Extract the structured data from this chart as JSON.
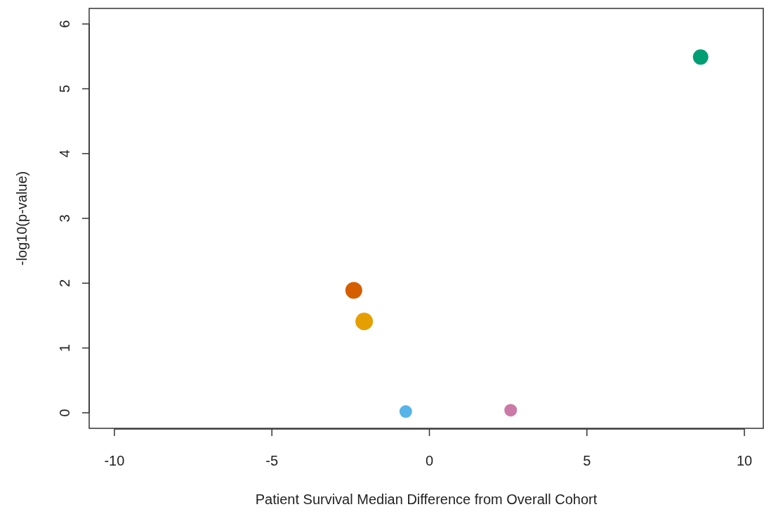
{
  "chart_data": {
    "type": "bubble",
    "xlabel": "Patient Survival Median Difference from Overall Cohort",
    "ylabel": "-log10(p-value)",
    "x": [
      8.61,
      -2.4,
      -2.07,
      -0.75,
      2.58
    ],
    "values": [
      5.49,
      1.89,
      1.41,
      0.02,
      0.04
    ],
    "sizes": [
      0.77,
      0.92,
      1,
      0.52,
      0.52
    ],
    "colors": [
      "#009e73",
      "#d55e00",
      "#e69f00",
      "#56b4e9",
      "#cc79a7"
    ],
    "xlim": [
      -10.8,
      10.6
    ],
    "xticks": [
      -10,
      -5,
      0,
      5,
      10
    ],
    "ylim": [
      -0.24,
      6.24
    ],
    "yticks": [
      0,
      1,
      2,
      3,
      4,
      5,
      6
    ],
    "grid": false
  }
}
